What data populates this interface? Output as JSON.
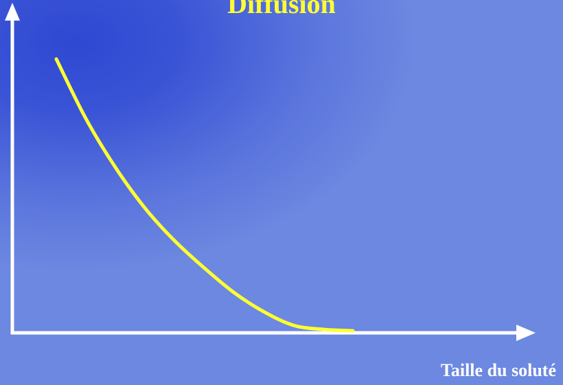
{
  "slide": {
    "title": "Diffusion",
    "x_axis_label": "Taille du soluté"
  },
  "colors": {
    "background": "#6c88e0",
    "background_dark": "#2f48d2",
    "curve": "#ffff33",
    "axes": "#ffffff",
    "title": "#ffff33"
  },
  "chart_data": {
    "type": "line",
    "title": "Diffusion",
    "xlabel": "Taille du soluté",
    "ylabel": "",
    "xlim": [
      0,
      1
    ],
    "ylim": [
      0,
      1
    ],
    "grid": false,
    "legend": "none",
    "series": [
      {
        "values_note": "",
        "x": [
          0.0,
          0.1,
          0.2,
          0.3,
          0.4,
          0.5,
          0.6,
          0.7,
          0.8,
          0.9,
          1.0
        ],
        "y": [
          1.0,
          0.78,
          0.6,
          0.45,
          0.33,
          0.23,
          0.14,
          0.07,
          0.02,
          0.005,
          0.0
        ]
      }
    ]
  }
}
